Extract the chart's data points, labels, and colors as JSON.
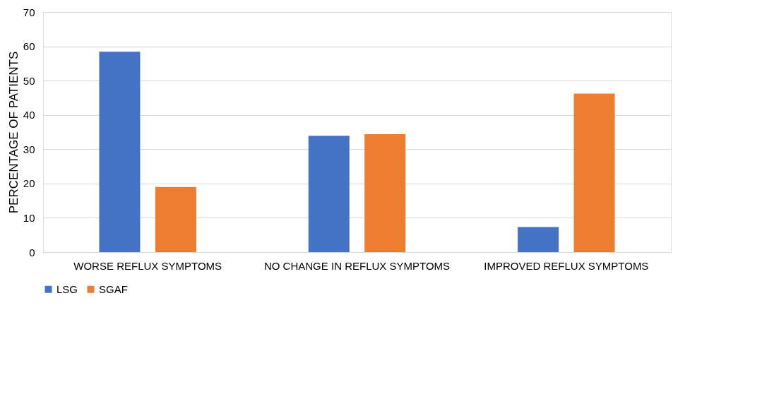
{
  "chart_data": {
    "type": "bar",
    "ylabel": "PERCENTAGE OF PATIENTS",
    "categories": [
      "WORSE REFLUX SYMPTOMS",
      "NO CHANGE IN REFLUX SYMPTOMS",
      "IMPROVED REFLUX SYMPTOMS"
    ],
    "series": [
      {
        "name": "LSG",
        "color": "#4472c4",
        "values": [
          58.4,
          33.9,
          7.3
        ]
      },
      {
        "name": "SGAF",
        "color": "#ed7d31",
        "values": [
          19.0,
          34.4,
          46.2
        ]
      }
    ],
    "ylim": [
      0,
      70
    ],
    "yticks": [
      0,
      10,
      20,
      30,
      40,
      50,
      60,
      70
    ],
    "grid": "y",
    "legend": "bottom"
  }
}
